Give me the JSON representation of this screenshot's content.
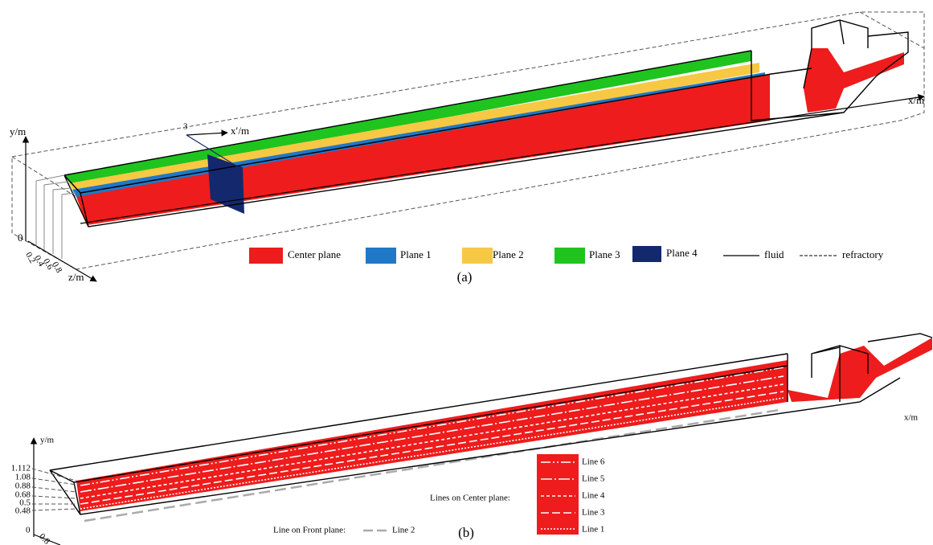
{
  "panel_a": {
    "caption": "(a)",
    "axes": {
      "y": "y/m",
      "x": "x/m",
      "x_prime": "x′/m",
      "x_prime_mark": "3",
      "origin": "0",
      "z": "z/m",
      "z_ticks": [
        "0.2",
        "0.4",
        "0.6",
        "0.8"
      ]
    },
    "legend": [
      {
        "label": "Center plane",
        "color": "#ee1c1c"
      },
      {
        "label": "Plane 1",
        "color": "#1f78c8"
      },
      {
        "label": "Plane 2",
        "color": "#f7c843"
      },
      {
        "label": "Plane 3",
        "color": "#1fc41f"
      },
      {
        "label": "Plane 4",
        "color": "#14286e"
      }
    ],
    "line_legend": {
      "fluid": "fluid",
      "refractory": "refractory"
    }
  },
  "panel_b": {
    "caption": "(b)",
    "axes": {
      "y": "y/m",
      "x": "x/m",
      "origin": "0",
      "z_tick": "0.8",
      "y_ticks": [
        "1.112",
        "1.08",
        "0.88",
        "0.68",
        "0.5",
        "0.48"
      ]
    },
    "center_legend": {
      "title": "Lines on Center plane:",
      "lines": [
        "Line 6",
        "Line 5",
        "Line 4",
        "Line 3",
        "Line 1"
      ]
    },
    "front_legend": {
      "title": "Line on Front plane:",
      "line": "Line 2"
    }
  }
}
